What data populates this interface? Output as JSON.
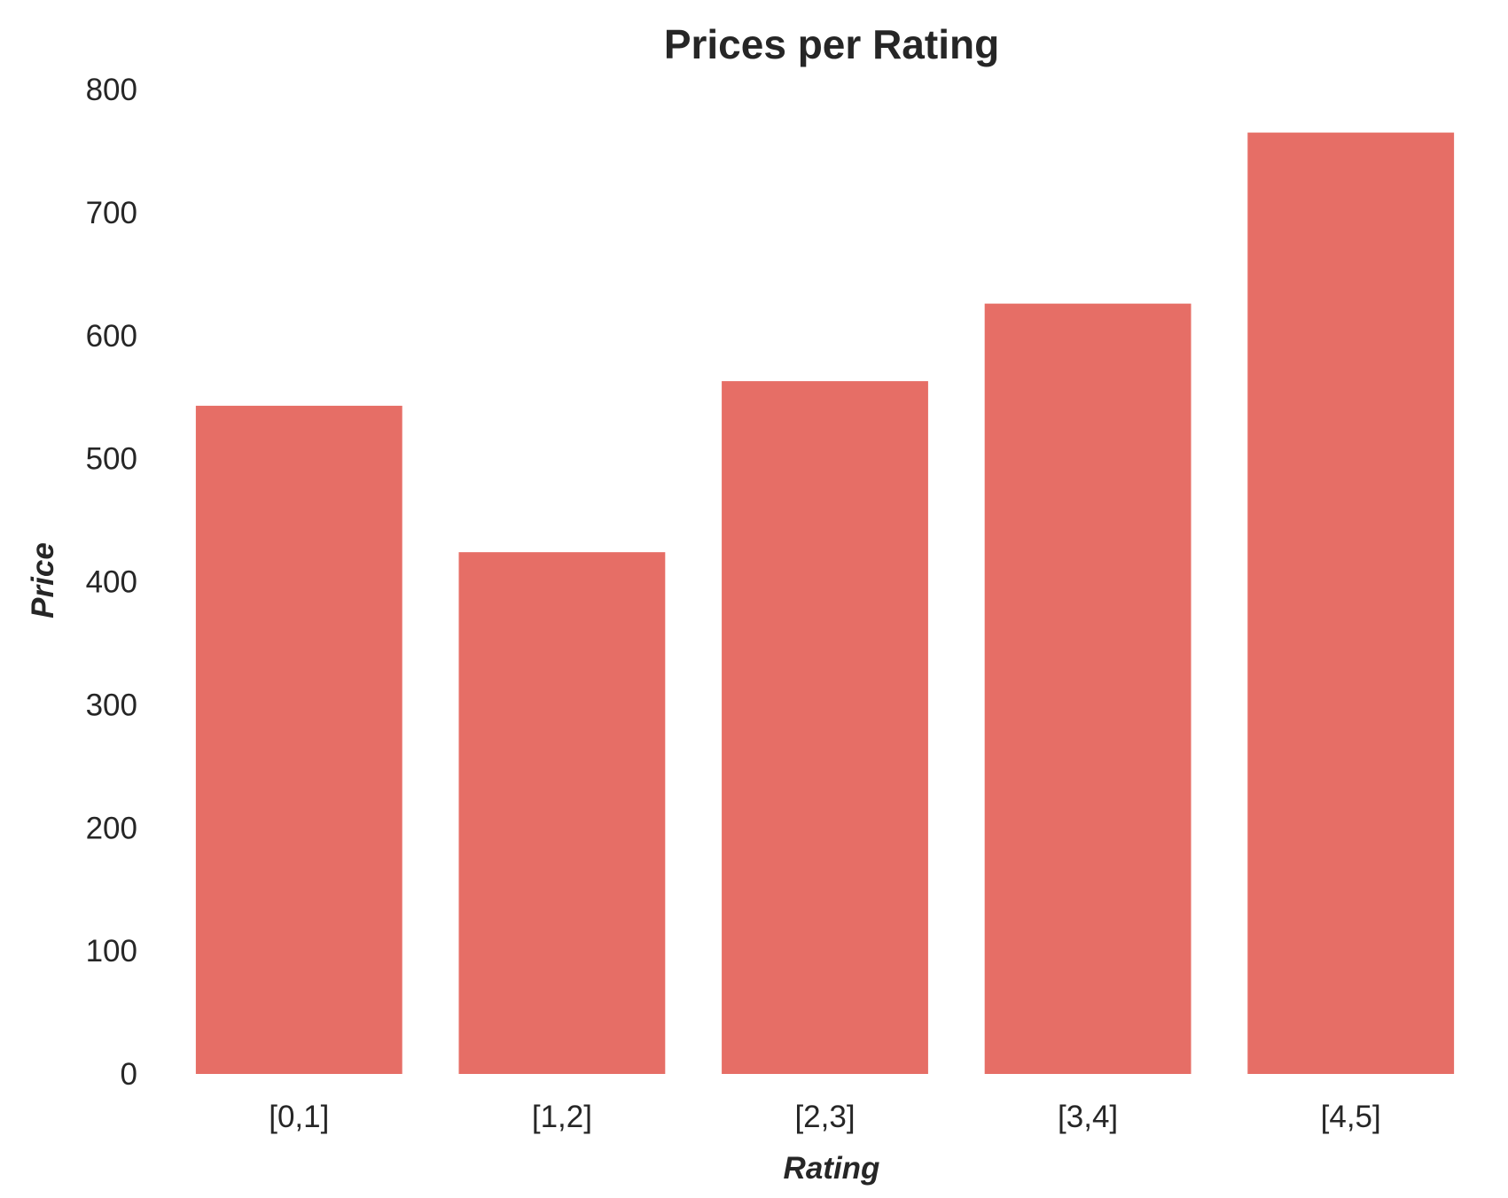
{
  "chart_data": {
    "type": "bar",
    "title": "Prices per Rating",
    "xlabel": "Rating",
    "ylabel": "Price",
    "categories": [
      "[0,1]",
      "[1,2]",
      "[2,3]",
      "[3,4]",
      "[4,5]"
    ],
    "values": [
      543,
      424,
      563,
      626,
      765
    ],
    "ylim": [
      0,
      800
    ],
    "yticks": [
      "0",
      "100",
      "200",
      "300",
      "400",
      "500",
      "600",
      "700",
      "800"
    ],
    "grid": false,
    "bar_color": "#e66e66",
    "text_color": "#262626",
    "background": "#ffffff"
  }
}
